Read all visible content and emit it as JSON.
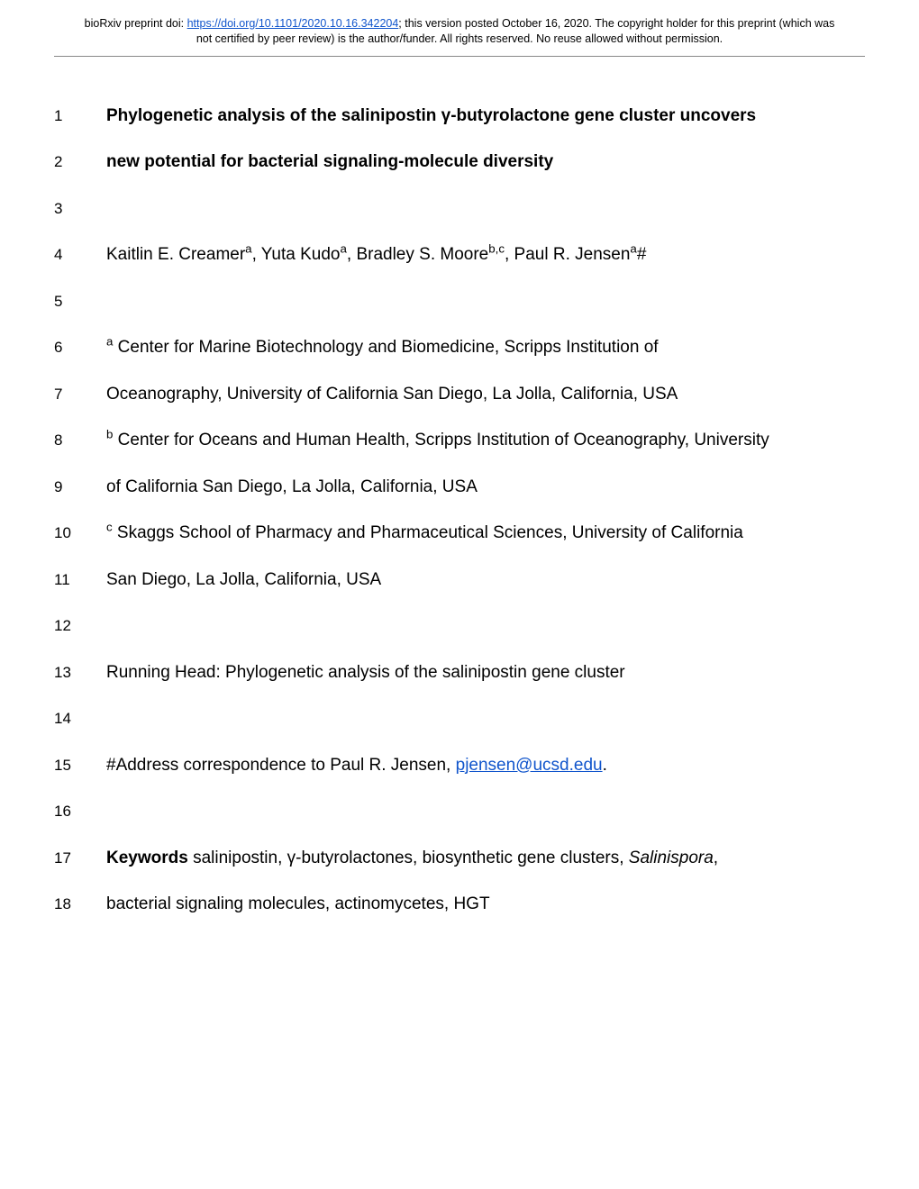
{
  "header": {
    "prefix": "bioRxiv preprint doi: ",
    "doi_url": "https://doi.org/10.1101/2020.10.16.342204",
    "suffix": "; this version posted October 16, 2020. The copyright holder for this preprint (which was not certified by peer review) is the author/funder. All rights reserved. No reuse allowed without permission."
  },
  "lines": [
    {
      "n": "1",
      "html": "<b>Phylogenetic analysis of the salinipostin γ-butyrolactone gene cluster uncovers</b>"
    },
    {
      "n": "2",
      "html": "<b>new potential for bacterial signaling-molecule diversity</b>"
    },
    {
      "n": "3",
      "html": ""
    },
    {
      "n": "4",
      "html": "Kaitlin E. Creamer<sup>a</sup>, Yuta Kudo<sup>a</sup>, Bradley S. Moore<sup>b,c</sup>, Paul R. Jensen<sup>a</sup>#"
    },
    {
      "n": "5",
      "html": ""
    },
    {
      "n": "6",
      "html": "<sup>a</sup> Center for Marine Biotechnology and Biomedicine, Scripps Institution of"
    },
    {
      "n": "7",
      "html": "Oceanography, University of California San Diego, La Jolla, California, USA"
    },
    {
      "n": "8",
      "html": "<sup>b</sup> Center for Oceans and Human Health, Scripps Institution of Oceanography, University"
    },
    {
      "n": "9",
      "html": "of California San Diego, La Jolla, California, USA"
    },
    {
      "n": "10",
      "html": "<sup>c</sup> Skaggs School of Pharmacy and Pharmaceutical Sciences, University of California"
    },
    {
      "n": "11",
      "html": "San Diego, La Jolla, California, USA"
    },
    {
      "n": "12",
      "html": ""
    },
    {
      "n": "13",
      "html": "Running Head: Phylogenetic analysis of the salinipostin gene cluster"
    },
    {
      "n": "14",
      "html": ""
    },
    {
      "n": "15",
      "html": "#Address correspondence to Paul R. Jensen, <a class=\"mail\" data-name=\"email-link\" data-interactable=\"true\">pjensen@ucsd.edu</a>."
    },
    {
      "n": "16",
      "html": ""
    },
    {
      "n": "17",
      "html": "<b>Keywords</b> salinipostin, γ-butyrolactones, biosynthetic gene clusters, <i>Salinispora</i>,"
    },
    {
      "n": "18",
      "html": "bacterial signaling molecules, actinomycetes, HGT"
    }
  ]
}
